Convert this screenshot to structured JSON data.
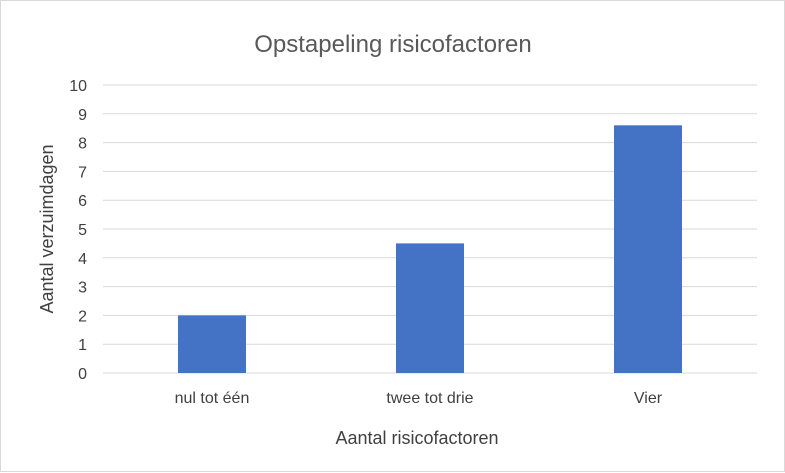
{
  "chart_data": {
    "type": "bar",
    "title": "Opstapeling risicofactoren",
    "xlabel": "Aantal risicofactoren",
    "ylabel": "Aantal verzuimdagen",
    "categories": [
      "nul tot één",
      "twee tot drie",
      "Vier"
    ],
    "values": [
      2.0,
      4.5,
      8.6
    ],
    "ylim": [
      0,
      10
    ],
    "yticks": [
      "0",
      "1",
      "2",
      "3",
      "4",
      "5",
      "6",
      "7",
      "8",
      "9",
      "10"
    ],
    "grid": true,
    "legend": "none",
    "bar_color": "#4472C4",
    "grid_color": "#d9d9d9"
  }
}
